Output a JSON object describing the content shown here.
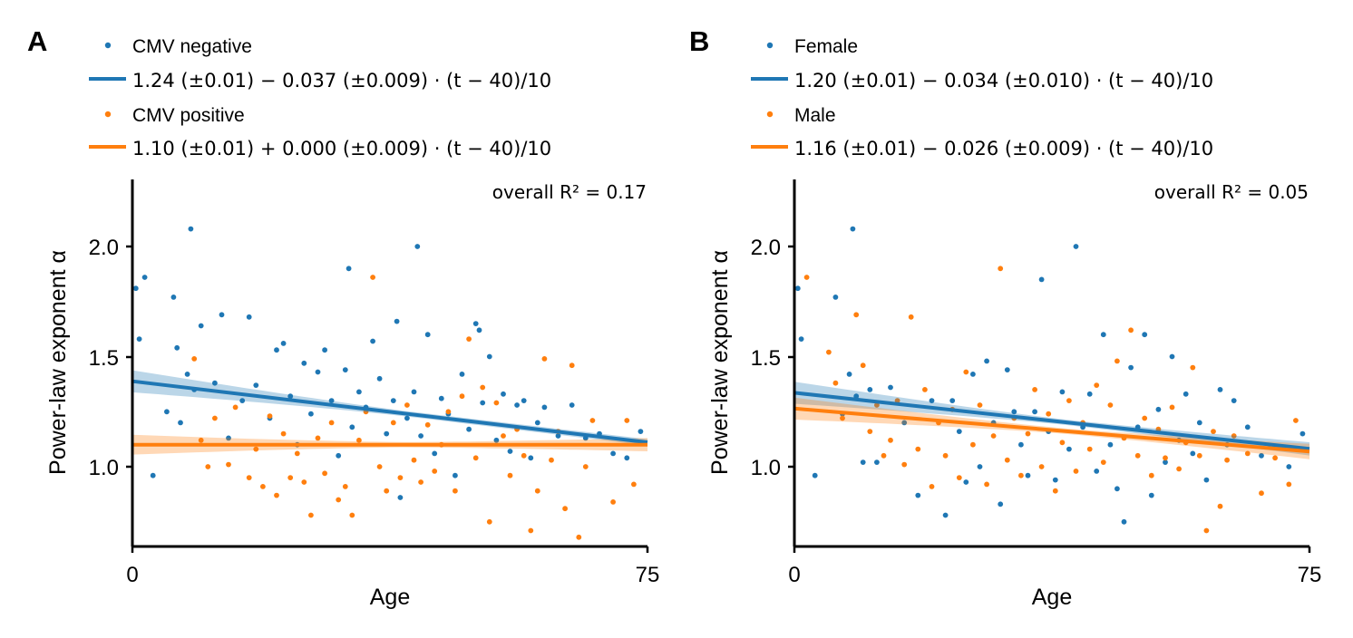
{
  "colors": {
    "blue": "#1f77b4",
    "orange": "#ff7f0e"
  },
  "chart_data": [
    {
      "panel": "A",
      "type": "scatter",
      "xlabel": "Age",
      "ylabel": "Power-law exponent α",
      "xlim": [
        0,
        75
      ],
      "ylim": [
        0.64,
        2.3
      ],
      "xticks": [
        "0",
        "75"
      ],
      "yticks": [
        "1.0",
        "1.5",
        "2.0"
      ],
      "annotation": "overall R² = 0.17",
      "legend_placement": "top",
      "series": [
        {
          "name": "CMV negative",
          "color": "#1f77b4",
          "fit_label": "1.24 (±0.01) − 0.037 (±0.009) · (t − 40)/10",
          "fit": {
            "intercept": 1.24,
            "slope_per_decade": -0.037,
            "center": 40,
            "band": [
              0.05,
              0.015
            ]
          },
          "points": [
            [
              0.5,
              1.81
            ],
            [
              1,
              1.58
            ],
            [
              1.8,
              1.86
            ],
            [
              3,
              0.96
            ],
            [
              5,
              1.25
            ],
            [
              6,
              1.77
            ],
            [
              6.5,
              1.54
            ],
            [
              7,
              1.2
            ],
            [
              8,
              1.42
            ],
            [
              8.5,
              2.08
            ],
            [
              9,
              1.35
            ],
            [
              10,
              1.64
            ],
            [
              12,
              1.38
            ],
            [
              13,
              1.69
            ],
            [
              14,
              1.13
            ],
            [
              16,
              1.3
            ],
            [
              17,
              1.68
            ],
            [
              18,
              1.37
            ],
            [
              20,
              1.22
            ],
            [
              21,
              1.53
            ],
            [
              22,
              1.56
            ],
            [
              23,
              1.32
            ],
            [
              24,
              1.1
            ],
            [
              25,
              1.47
            ],
            [
              26,
              1.24
            ],
            [
              27,
              1.43
            ],
            [
              28,
              1.53
            ],
            [
              29,
              1.3
            ],
            [
              30,
              1.05
            ],
            [
              31,
              1.44
            ],
            [
              31.5,
              1.9
            ],
            [
              32,
              1.18
            ],
            [
              33,
              1.34
            ],
            [
              34,
              1.27
            ],
            [
              35,
              1.57
            ],
            [
              36,
              1.4
            ],
            [
              37,
              1.15
            ],
            [
              38,
              1.3
            ],
            [
              38.5,
              1.66
            ],
            [
              39,
              0.86
            ],
            [
              40,
              1.22
            ],
            [
              41,
              1.34
            ],
            [
              41.5,
              2.0
            ],
            [
              42,
              1.14
            ],
            [
              43,
              1.6
            ],
            [
              44,
              1.06
            ],
            [
              45,
              1.31
            ],
            [
              46,
              1.24
            ],
            [
              47,
              0.96
            ],
            [
              48,
              1.42
            ],
            [
              49,
              1.17
            ],
            [
              50,
              1.65
            ],
            [
              50.5,
              1.62
            ],
            [
              51,
              1.29
            ],
            [
              52,
              1.5
            ],
            [
              53,
              1.12
            ],
            [
              54,
              1.33
            ],
            [
              55,
              1.07
            ],
            [
              56,
              1.28
            ],
            [
              57,
              1.3
            ],
            [
              58,
              1.04
            ],
            [
              59,
              1.2
            ],
            [
              60,
              1.27
            ],
            [
              62,
              1.14
            ],
            [
              64,
              1.28
            ],
            [
              66,
              1.13
            ],
            [
              68,
              1.15
            ],
            [
              70,
              1.06
            ],
            [
              72,
              1.04
            ],
            [
              74,
              1.16
            ]
          ]
        },
        {
          "name": "CMV positive",
          "color": "#ff7f0e",
          "fit_label": "1.10 (±0.01) + 0.000 (±0.009) · (t − 40)/10",
          "fit": {
            "intercept": 1.1,
            "slope_per_decade": 0.0,
            "center": 40,
            "band": [
              0.045,
              0.03
            ]
          },
          "points": [
            [
              9,
              1.49
            ],
            [
              10,
              1.12
            ],
            [
              11,
              1.0
            ],
            [
              12,
              1.22
            ],
            [
              14,
              1.01
            ],
            [
              15,
              1.27
            ],
            [
              17,
              0.95
            ],
            [
              18,
              1.08
            ],
            [
              19,
              0.91
            ],
            [
              20,
              1.23
            ],
            [
              21,
              0.87
            ],
            [
              22,
              1.15
            ],
            [
              23,
              0.95
            ],
            [
              24,
              1.06
            ],
            [
              25,
              0.93
            ],
            [
              26,
              0.78
            ],
            [
              27,
              1.13
            ],
            [
              28,
              0.97
            ],
            [
              29,
              1.2
            ],
            [
              30,
              0.85
            ],
            [
              31,
              0.91
            ],
            [
              32,
              0.78
            ],
            [
              33,
              1.12
            ],
            [
              34,
              1.25
            ],
            [
              35,
              1.86
            ],
            [
              36,
              1.0
            ],
            [
              37,
              0.89
            ],
            [
              38,
              1.2
            ],
            [
              39,
              0.95
            ],
            [
              40,
              1.28
            ],
            [
              41,
              1.03
            ],
            [
              42,
              0.93
            ],
            [
              43,
              1.19
            ],
            [
              44,
              0.98
            ],
            [
              45,
              1.1
            ],
            [
              46,
              1.25
            ],
            [
              47,
              0.89
            ],
            [
              48,
              1.32
            ],
            [
              49,
              1.58
            ],
            [
              50,
              1.04
            ],
            [
              51,
              1.36
            ],
            [
              52,
              0.75
            ],
            [
              53,
              1.29
            ],
            [
              54,
              1.14
            ],
            [
              55,
              0.96
            ],
            [
              56,
              1.17
            ],
            [
              57,
              1.05
            ],
            [
              58,
              0.71
            ],
            [
              59,
              0.89
            ],
            [
              60,
              1.49
            ],
            [
              61,
              1.03
            ],
            [
              62,
              1.16
            ],
            [
              63,
              0.81
            ],
            [
              64,
              1.46
            ],
            [
              65,
              0.68
            ],
            [
              66,
              1.0
            ],
            [
              67,
              1.21
            ],
            [
              70,
              0.84
            ],
            [
              72,
              1.21
            ],
            [
              73,
              0.92
            ]
          ]
        }
      ]
    },
    {
      "panel": "B",
      "type": "scatter",
      "xlabel": "Age",
      "ylabel": "Power-law exponent α",
      "xlim": [
        0,
        75
      ],
      "ylim": [
        0.64,
        2.3
      ],
      "xticks": [
        "0",
        "75"
      ],
      "yticks": [
        "1.0",
        "1.5",
        "2.0"
      ],
      "annotation": "overall R² = 0.05",
      "legend_placement": "top",
      "series": [
        {
          "name": "Female",
          "color": "#1f77b4",
          "fit_label": "1.20 (±0.01) − 0.034 (±0.010) · (t − 40)/10",
          "fit": {
            "intercept": 1.2,
            "slope_per_decade": -0.034,
            "center": 40,
            "band": [
              0.05,
              0.03
            ]
          },
          "points": [
            [
              0.5,
              1.81
            ],
            [
              1,
              1.58
            ],
            [
              3,
              0.96
            ],
            [
              6,
              1.77
            ],
            [
              7,
              1.24
            ],
            [
              8,
              1.42
            ],
            [
              8.5,
              2.08
            ],
            [
              9,
              1.32
            ],
            [
              10,
              1.02
            ],
            [
              11,
              1.35
            ],
            [
              12,
              1.02
            ],
            [
              14,
              1.36
            ],
            [
              16,
              1.2
            ],
            [
              18,
              0.87
            ],
            [
              20,
              1.3
            ],
            [
              22,
              0.78
            ],
            [
              23,
              1.3
            ],
            [
              24,
              1.16
            ],
            [
              25,
              0.93
            ],
            [
              26,
              1.42
            ],
            [
              27,
              1.0
            ],
            [
              28,
              1.48
            ],
            [
              29,
              1.2
            ],
            [
              30,
              0.83
            ],
            [
              31,
              1.44
            ],
            [
              32,
              1.25
            ],
            [
              33,
              1.1
            ],
            [
              34,
              0.96
            ],
            [
              35,
              1.25
            ],
            [
              36,
              1.85
            ],
            [
              37,
              1.16
            ],
            [
              38,
              0.94
            ],
            [
              39,
              1.34
            ],
            [
              40,
              1.08
            ],
            [
              41,
              2.0
            ],
            [
              42,
              1.18
            ],
            [
              43,
              1.33
            ],
            [
              44,
              0.98
            ],
            [
              45,
              1.6
            ],
            [
              46,
              1.1
            ],
            [
              47,
              0.9
            ],
            [
              48,
              0.75
            ],
            [
              49,
              1.45
            ],
            [
              50,
              1.18
            ],
            [
              51,
              1.6
            ],
            [
              52,
              0.87
            ],
            [
              53,
              1.26
            ],
            [
              54,
              1.02
            ],
            [
              55,
              1.5
            ],
            [
              56,
              1.12
            ],
            [
              57,
              1.33
            ],
            [
              58,
              1.06
            ],
            [
              59,
              1.2
            ],
            [
              60,
              0.94
            ],
            [
              62,
              1.35
            ],
            [
              63,
              1.1
            ],
            [
              64,
              1.3
            ],
            [
              66,
              1.18
            ],
            [
              68,
              1.05
            ],
            [
              70,
              1.09
            ],
            [
              72,
              1.0
            ],
            [
              74,
              1.15
            ]
          ]
        },
        {
          "name": "Male",
          "color": "#ff7f0e",
          "fit_label": "1.16 (±0.01) − 0.026 (±0.009) · (t − 40)/10",
          "fit": {
            "intercept": 1.16,
            "slope_per_decade": -0.026,
            "center": 40,
            "band": [
              0.05,
              0.035
            ]
          },
          "points": [
            [
              1.8,
              1.86
            ],
            [
              5,
              1.52
            ],
            [
              6,
              1.38
            ],
            [
              7,
              1.22
            ],
            [
              9,
              1.69
            ],
            [
              10,
              1.46
            ],
            [
              11,
              1.16
            ],
            [
              12,
              1.28
            ],
            [
              13,
              1.05
            ],
            [
              14,
              1.12
            ],
            [
              15,
              1.3
            ],
            [
              16,
              1.01
            ],
            [
              17,
              1.68
            ],
            [
              18,
              1.08
            ],
            [
              19,
              1.35
            ],
            [
              20,
              0.91
            ],
            [
              21,
              1.2
            ],
            [
              22,
              1.05
            ],
            [
              23,
              1.26
            ],
            [
              24,
              0.95
            ],
            [
              25,
              1.43
            ],
            [
              26,
              1.1
            ],
            [
              27,
              1.28
            ],
            [
              28,
              0.92
            ],
            [
              29,
              1.14
            ],
            [
              30,
              1.9
            ],
            [
              31,
              1.03
            ],
            [
              32,
              1.22
            ],
            [
              33,
              0.96
            ],
            [
              34,
              1.15
            ],
            [
              35,
              1.35
            ],
            [
              36,
              1.0
            ],
            [
              37,
              1.24
            ],
            [
              38,
              0.89
            ],
            [
              39,
              1.11
            ],
            [
              40,
              1.3
            ],
            [
              41,
              0.98
            ],
            [
              42,
              1.2
            ],
            [
              43,
              1.08
            ],
            [
              44,
              1.37
            ],
            [
              45,
              1.02
            ],
            [
              46,
              1.28
            ],
            [
              47,
              1.48
            ],
            [
              48,
              1.13
            ],
            [
              49,
              1.62
            ],
            [
              50,
              1.05
            ],
            [
              51,
              1.22
            ],
            [
              52,
              0.96
            ],
            [
              53,
              1.17
            ],
            [
              54,
              1.04
            ],
            [
              55,
              1.27
            ],
            [
              56,
              0.99
            ],
            [
              57,
              1.11
            ],
            [
              58,
              1.45
            ],
            [
              59,
              1.05
            ],
            [
              60,
              0.71
            ],
            [
              61,
              1.16
            ],
            [
              62,
              0.82
            ],
            [
              63,
              1.03
            ],
            [
              64,
              1.14
            ],
            [
              66,
              1.06
            ],
            [
              68,
              0.88
            ],
            [
              70,
              1.04
            ],
            [
              72,
              0.92
            ],
            [
              73,
              1.21
            ]
          ]
        }
      ]
    }
  ]
}
